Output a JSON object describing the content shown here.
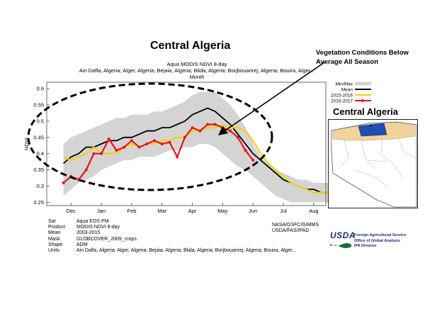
{
  "header": {
    "title": "Central Algeria",
    "callout": "Vegetation Conditions Below Average All Season"
  },
  "chart_data": {
    "type": "line",
    "subtitle_lines": [
      "Aqua MODIS NDVI 8-day",
      "Ain Dafla, Algeria; Alger, Algeria; Bejaia, Algeria; Blida, Algeria; Borjbouarirej, Algeria; Bouira, Alger...",
      "Month"
    ],
    "ylabel": "NDVI",
    "x_ticks": [
      "Dec",
      "Jan",
      "Feb",
      "Mar",
      "Apr",
      "May",
      "Jun",
      "Jul",
      "Aug"
    ],
    "x_tick_positions": [
      1,
      5,
      9,
      13,
      17,
      21,
      25,
      29,
      33
    ],
    "xlim": [
      -2.2,
      34.6
    ],
    "y_ticks": [
      "0.25",
      "0.3",
      "0.35",
      "0.4",
      "0.45",
      "0.5",
      "0.55",
      "0.6"
    ],
    "ylim": [
      0.24,
      0.62
    ],
    "band": {
      "name": "Min/Max",
      "min": [
        0.27,
        0.29,
        0.31,
        0.32,
        0.33,
        0.35,
        0.36,
        0.37,
        0.38,
        0.38,
        0.39,
        0.39,
        0.39,
        0.4,
        0.41,
        0.41,
        0.42,
        0.42,
        0.43,
        0.43,
        0.42,
        0.4,
        0.38,
        0.36,
        0.35,
        0.33,
        0.31,
        0.29,
        0.27,
        0.26,
        0.25,
        0.25,
        0.25,
        0.25,
        0.25,
        0.25,
        0.26
      ],
      "max": [
        0.43,
        0.45,
        0.46,
        0.47,
        0.48,
        0.49,
        0.5,
        0.51,
        0.51,
        0.52,
        0.52,
        0.52,
        0.53,
        0.53,
        0.54,
        0.55,
        0.56,
        0.58,
        0.59,
        0.59,
        0.59,
        0.57,
        0.55,
        0.52,
        0.48,
        0.43,
        0.39,
        0.37,
        0.35,
        0.34,
        0.33,
        0.32,
        0.32,
        0.31,
        0.31,
        0.31,
        0.31
      ]
    },
    "series": [
      {
        "name": "Mean",
        "color": "#000000",
        "values": [
          0.37,
          0.39,
          0.4,
          0.42,
          0.42,
          0.43,
          0.44,
          0.44,
          0.45,
          0.45,
          0.46,
          0.47,
          0.47,
          0.48,
          0.48,
          0.49,
          0.5,
          0.52,
          0.53,
          0.54,
          0.53,
          0.51,
          0.49,
          0.46,
          0.43,
          0.4,
          0.38,
          0.36,
          0.34,
          0.32,
          0.31,
          0.3,
          0.29,
          0.29,
          0.28,
          0.28,
          0.28
        ]
      },
      {
        "name": "2015-2016",
        "color": "#f2d20c",
        "values": [
          0.39,
          0.38,
          0.39,
          0.4,
          0.42,
          0.4,
          0.4,
          0.4,
          0.42,
          0.43,
          0.42,
          0.43,
          0.43,
          0.44,
          0.44,
          0.45,
          0.45,
          0.47,
          0.47,
          0.48,
          0.48,
          0.49,
          0.48,
          0.48,
          0.47,
          0.44,
          0.4,
          0.37,
          0.35,
          0.33,
          0.31,
          0.3,
          0.29,
          0.28,
          0.28,
          0.28,
          0.28
        ]
      },
      {
        "name": "2016-2017",
        "color": "#e8141c",
        "values": [
          0.31,
          0.33,
          0.32,
          0.35,
          0.4,
          0.4,
          0.445,
          0.41,
          0.42,
          0.44,
          0.42,
          0.43,
          0.44,
          0.43,
          0.435,
          0.39,
          0.45,
          0.48,
          0.47,
          0.49,
          0.49,
          0.48,
          0.47,
          0.45,
          0.41,
          0.38
        ]
      }
    ],
    "legend_position": "top-right",
    "grid": false
  },
  "map": {
    "title": "Central Algeria"
  },
  "metadata": {
    "keys": [
      "Sat",
      "Product",
      "Mean",
      "Mask",
      "Shape",
      "Units"
    ],
    "values": [
      "Aqua EOS PM",
      "MODIS NDVI 8-day",
      "2003-2015",
      "GLOBCOVER_2009_crops",
      "ADM",
      "Ain Dafla, Algeria; Alger, Algeria; Bejaia, Algeria; Blida, Algeria; Borjbouarirej, Algeria; Bouira, Alger..."
    ]
  },
  "credits": [
    "NASA/GSFC/GIMMS",
    "USDA/FAS/IPAD"
  ],
  "usda": {
    "word": "USDA",
    "lines": [
      "Foreign Agricultural Service",
      "Office of Global Analysis",
      "IPA Division"
    ]
  }
}
